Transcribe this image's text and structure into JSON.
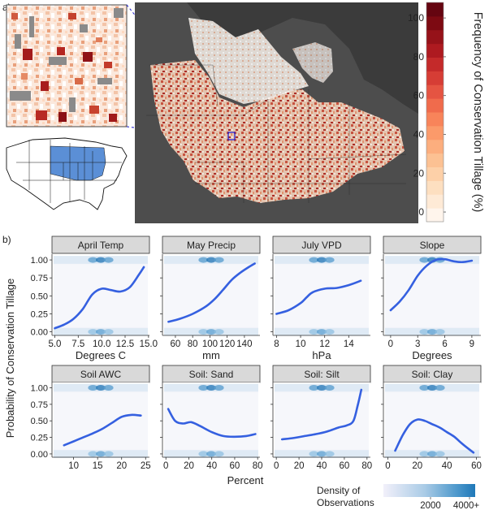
{
  "panel_a": {
    "label": "a)",
    "colorbar": {
      "title": "Frequency of Conservation Tillage (%)",
      "ticks": [
        0,
        20,
        40,
        60,
        80,
        100
      ],
      "range": [
        -5,
        108
      ],
      "colors": [
        "#fff5ec",
        "#feead6",
        "#fddfc0",
        "#fdd0a8",
        "#fcc193",
        "#fcae7e",
        "#fb9a6a",
        "#f8845a",
        "#f06b4c",
        "#e55442",
        "#d63d35",
        "#c42a2a",
        "#ae1a20",
        "#961219",
        "#7d0a12",
        "#650510"
      ]
    },
    "map": {
      "region": "US Midwest - conservation tillage frequency map"
    },
    "inset": {
      "description": "Zoomed detail of cropland field parcels"
    },
    "us_map": {
      "description": "Outline of contiguous US with study states highlighted in blue"
    }
  },
  "panel_b": {
    "label": "b)",
    "y_axis_label": "Probability of Conservation Tillage",
    "legend": {
      "title_line1": "Density of",
      "title_line2": "Observations",
      "tick_labels": [
        "2000",
        "4000+"
      ]
    }
  },
  "chart_data": [
    {
      "type": "line",
      "title": "April Temp",
      "xlabel": "Degrees C",
      "xlim": [
        4.7,
        15.1
      ],
      "ylim": [
        -0.05,
        1.08
      ],
      "xticks": [
        5.0,
        7.5,
        10.0,
        12.5,
        15.0
      ],
      "xtick_labels": [
        "5.0",
        "7.5",
        "10.0",
        "12.5",
        "15.0"
      ],
      "yticks": [
        0,
        0.25,
        0.5,
        0.75,
        1.0
      ],
      "ytick_labels": [
        "0.00",
        "0.25",
        "0.50",
        "0.75",
        "1.00"
      ],
      "x": [
        5.0,
        6.0,
        7.0,
        8.0,
        9.0,
        10.0,
        11.0,
        12.0,
        13.0,
        14.0,
        14.5
      ],
      "y": [
        0.05,
        0.1,
        0.18,
        0.32,
        0.52,
        0.6,
        0.58,
        0.56,
        0.62,
        0.8,
        0.9
      ]
    },
    {
      "type": "line",
      "title": "May Precip",
      "xlabel": "mm",
      "xlim": [
        45,
        158
      ],
      "ylim": [
        -0.05,
        1.08
      ],
      "xticks": [
        60,
        80,
        100,
        120,
        140
      ],
      "xtick_labels": [
        "60",
        "80",
        "100",
        "120",
        "140"
      ],
      "yticks": [
        0,
        0.25,
        0.5,
        0.75,
        1.0
      ],
      "ytick_labels": [
        "0.00",
        "0.25",
        "0.50",
        "0.75",
        "1.00"
      ],
      "x": [
        52,
        65,
        80,
        95,
        105,
        115,
        125,
        135,
        145,
        152
      ],
      "y": [
        0.14,
        0.18,
        0.25,
        0.35,
        0.45,
        0.58,
        0.72,
        0.82,
        0.9,
        0.95
      ]
    },
    {
      "type": "line",
      "title": "July VPD",
      "xlabel": "hPa",
      "xlim": [
        7.7,
        15.8
      ],
      "ylim": [
        -0.05,
        1.08
      ],
      "xticks": [
        8,
        10,
        12,
        14
      ],
      "xtick_labels": [
        "8",
        "10",
        "12",
        "14"
      ],
      "yticks": [
        0,
        0.25,
        0.5,
        0.75,
        1.0
      ],
      "ytick_labels": [
        "0.00",
        "0.25",
        "0.50",
        "0.75",
        "1.00"
      ],
      "x": [
        8.0,
        9.0,
        10.0,
        10.5,
        11.0,
        12.0,
        13.0,
        14.0,
        15.0
      ],
      "y": [
        0.25,
        0.3,
        0.4,
        0.48,
        0.55,
        0.6,
        0.61,
        0.65,
        0.71
      ]
    },
    {
      "type": "line",
      "title": "Slope",
      "xlabel": "Degrees",
      "xlim": [
        -0.8,
        10.0
      ],
      "ylim": [
        -0.05,
        1.08
      ],
      "xticks": [
        0,
        3,
        6,
        9
      ],
      "xtick_labels": [
        "0",
        "3",
        "6",
        "9"
      ],
      "yticks": [
        0,
        0.25,
        0.5,
        0.75,
        1.0
      ],
      "ytick_labels": [
        "0.00",
        "0.25",
        "0.50",
        "0.75",
        "1.00"
      ],
      "x": [
        0.0,
        1.0,
        2.0,
        3.0,
        4.0,
        5.0,
        6.0,
        7.0,
        8.0,
        9.0
      ],
      "y": [
        0.3,
        0.42,
        0.58,
        0.78,
        0.92,
        1.0,
        1.01,
        0.98,
        0.97,
        0.99
      ]
    },
    {
      "type": "line",
      "title": "Soil AWC",
      "xlabel": "",
      "xlim": [
        5.5,
        25.8
      ],
      "ylim": [
        -0.05,
        1.08
      ],
      "xticks": [
        10,
        15,
        20,
        25
      ],
      "xtick_labels": [
        "10",
        "15",
        "20",
        "25"
      ],
      "yticks": [
        0,
        0.25,
        0.5,
        0.75,
        1.0
      ],
      "ytick_labels": [
        "0.00",
        "0.25",
        "0.50",
        "0.75",
        "1.00"
      ],
      "x": [
        8,
        10,
        12,
        14,
        16,
        18,
        20,
        22,
        24
      ],
      "y": [
        0.13,
        0.19,
        0.25,
        0.31,
        0.38,
        0.47,
        0.56,
        0.59,
        0.58
      ]
    },
    {
      "type": "line",
      "title": "Soil: Sand",
      "xlabel": "",
      "xlim": [
        -3,
        82
      ],
      "ylim": [
        -0.05,
        1.08
      ],
      "xticks": [
        0,
        20,
        40,
        60,
        80
      ],
      "xtick_labels": [
        "0",
        "20",
        "40",
        "60",
        "80"
      ],
      "yticks": [
        0,
        0.25,
        0.5,
        0.75,
        1.0
      ],
      "ytick_labels": [
        "0.00",
        "0.25",
        "0.50",
        "0.75",
        "1.00"
      ],
      "x": [
        2,
        8,
        15,
        22,
        30,
        40,
        50,
        60,
        70,
        78
      ],
      "y": [
        0.68,
        0.5,
        0.46,
        0.48,
        0.42,
        0.33,
        0.27,
        0.26,
        0.27,
        0.3
      ]
    },
    {
      "type": "line",
      "title": "Soil: Silt",
      "xlabel": "",
      "xlim": [
        -3,
        83
      ],
      "ylim": [
        -0.05,
        1.08
      ],
      "xticks": [
        0,
        20,
        40,
        60,
        80
      ],
      "xtick_labels": [
        "0",
        "20",
        "40",
        "60",
        "80"
      ],
      "yticks": [
        0,
        0.25,
        0.5,
        0.75,
        1.0
      ],
      "ytick_labels": [
        "0.00",
        "0.25",
        "0.50",
        "0.75",
        "1.00"
      ],
      "x": [
        5,
        15,
        25,
        35,
        45,
        55,
        62,
        68,
        72,
        75
      ],
      "y": [
        0.22,
        0.24,
        0.27,
        0.3,
        0.34,
        0.4,
        0.43,
        0.5,
        0.75,
        0.97
      ]
    },
    {
      "type": "line",
      "title": "Soil: Clay",
      "xlabel": "",
      "xlim": [
        -3,
        63
      ],
      "ylim": [
        -0.05,
        1.08
      ],
      "xticks": [
        0,
        20,
        40,
        60
      ],
      "xtick_labels": [
        "0",
        "20",
        "40",
        "60"
      ],
      "yticks": [
        0,
        0.25,
        0.5,
        0.75,
        1.0
      ],
      "ytick_labels": [
        "0.00",
        "0.25",
        "0.50",
        "0.75",
        "1.00"
      ],
      "x": [
        5,
        10,
        15,
        20,
        25,
        30,
        35,
        40,
        45,
        50,
        55,
        58
      ],
      "y": [
        0.05,
        0.28,
        0.45,
        0.52,
        0.5,
        0.45,
        0.4,
        0.33,
        0.26,
        0.16,
        0.07,
        0.02
      ]
    }
  ],
  "shared_xlabel_bottom": "Percent"
}
